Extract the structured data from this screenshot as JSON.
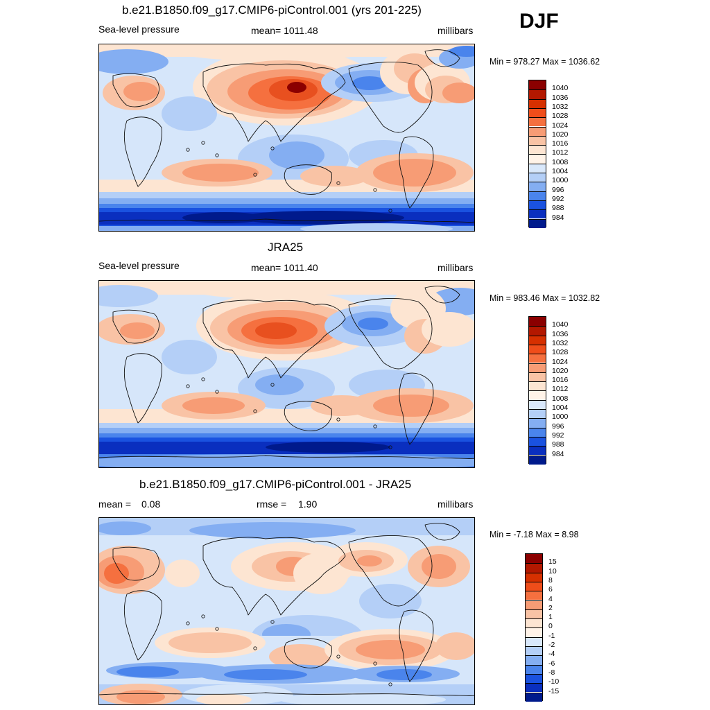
{
  "season": "DJF",
  "panels": [
    {
      "title": "b.e21.B1850.f09_g17.CMIP6-piControl.001 (yrs 201-225)",
      "left": "Sea-level pressure",
      "center": "mean= 1011.48",
      "right": "millibars",
      "minmax": "Min = 978.27 Max = 1036.62",
      "colorbar": {
        "labels": [
          "1040",
          "1036",
          "1032",
          "1028",
          "1024",
          "1020",
          "1016",
          "1012",
          "1008",
          "1004",
          "1000",
          "996",
          "992",
          "988",
          "984"
        ],
        "colors": [
          "#8b0000",
          "#b31800",
          "#d63000",
          "#ef4d1a",
          "#f5703f",
          "#f79c75",
          "#f9c3a5",
          "#fde5d2",
          "#fff3e8",
          "#d9e8fb",
          "#b4cff7",
          "#84aef2",
          "#4a84ec",
          "#1a52e0",
          "#0a2fbf",
          "#001a8c"
        ]
      },
      "map_label": "Sea-level pressure field (model)"
    },
    {
      "title": "JRA25",
      "left": "Sea-level pressure",
      "center": "mean= 1011.40",
      "right": "millibars",
      "minmax": "Min = 983.46 Max = 1032.82",
      "colorbar": {
        "labels": [
          "1040",
          "1036",
          "1032",
          "1028",
          "1024",
          "1020",
          "1016",
          "1012",
          "1008",
          "1004",
          "1000",
          "996",
          "992",
          "988",
          "984"
        ],
        "colors": [
          "#8b0000",
          "#b31800",
          "#d63000",
          "#ef4d1a",
          "#f5703f",
          "#f79c75",
          "#f9c3a5",
          "#fde5d2",
          "#fff3e8",
          "#d9e8fb",
          "#b4cff7",
          "#84aef2",
          "#4a84ec",
          "#1a52e0",
          "#0a2fbf",
          "#001a8c"
        ]
      },
      "map_label": "Sea-level pressure field (JRA25)"
    },
    {
      "title": "b.e21.B1850.f09_g17.CMIP6-piControl.001 - JRA25",
      "left_label": "mean =",
      "left_value": "0.08",
      "center_label": "rmse =",
      "center_value": "1.90",
      "right": "millibars",
      "minmax": "Min =  -7.18 Max =   8.98",
      "colorbar": {
        "labels": [
          "15",
          "10",
          "8",
          "6",
          "4",
          "2",
          "1",
          "0",
          "-1",
          "-2",
          "-4",
          "-6",
          "-8",
          "-10",
          "-15"
        ],
        "colors": [
          "#8b0000",
          "#b31800",
          "#d63000",
          "#ef4d1a",
          "#f5703f",
          "#f79c75",
          "#f9c3a5",
          "#fde5d2",
          "#fff3e8",
          "#d9e8fb",
          "#b4cff7",
          "#84aef2",
          "#4a84ec",
          "#1a52e0",
          "#0a2fbf",
          "#001a8c"
        ]
      },
      "map_label": "Sea-level pressure difference field"
    }
  ]
}
